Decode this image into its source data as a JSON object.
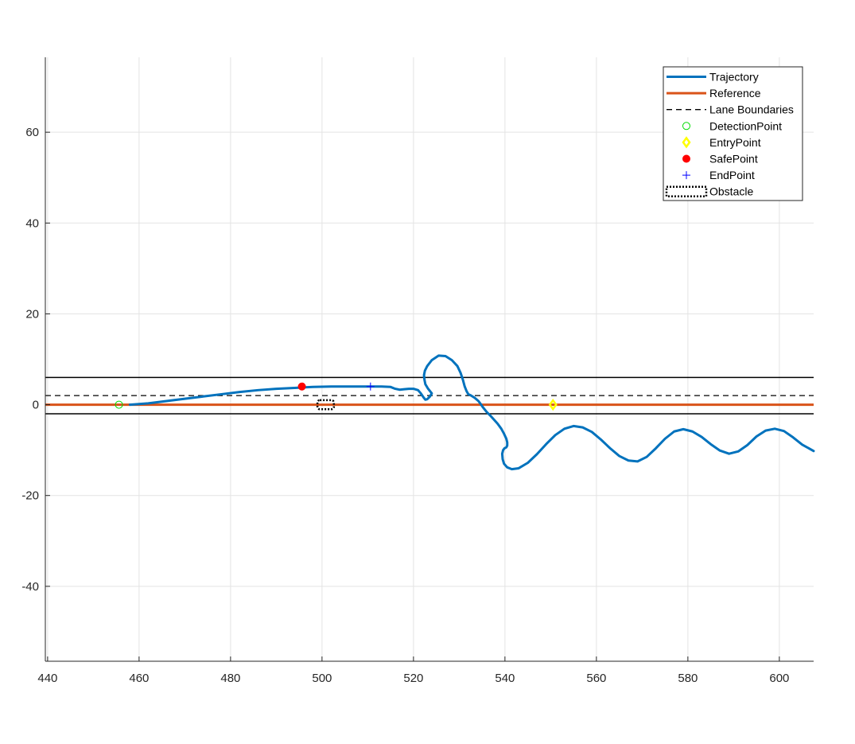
{
  "chart_data": {
    "type": "line",
    "title": "",
    "xlabel": "",
    "ylabel": "",
    "xlim": [
      439.5,
      607.5
    ],
    "ylim": [
      -56.5,
      76.5
    ],
    "xticks": [
      440,
      460,
      480,
      500,
      520,
      540,
      560,
      580,
      600
    ],
    "yticks": [
      -40,
      -20,
      0,
      20,
      40,
      60
    ],
    "grid": true,
    "legend_position": "top-right",
    "series": [
      {
        "name": "Trajectory",
        "kind": "line",
        "color": "#0072BD",
        "x": [
          458.0,
          462,
          466,
          470,
          474,
          478,
          482,
          486,
          490,
          494,
          498,
          502,
          506,
          510,
          513,
          515,
          516,
          517,
          518,
          519,
          520,
          521,
          521.6,
          522.2,
          522.6,
          523,
          523.6,
          524,
          523.6,
          523.2,
          522.6,
          522.4,
          522.3,
          522.5,
          523,
          524,
          525.5,
          527,
          528.4,
          529.6,
          530.3,
          530.8,
          531.2,
          531.6,
          532.0,
          532.6,
          533.4,
          534.2,
          534.8,
          535.2,
          535.6,
          536.0,
          536.8,
          537.6,
          538.4,
          539.2,
          539.8,
          540.3,
          540.5,
          540.5,
          540.3,
          539.9,
          539.6,
          539.4,
          539.5,
          539.8,
          540.5,
          541.5,
          543,
          545,
          547,
          549,
          551,
          553,
          555,
          557,
          559,
          561,
          563,
          565,
          567,
          569,
          571,
          573,
          575,
          577,
          579,
          581,
          583,
          585,
          587,
          589,
          591,
          593,
          595,
          597,
          599,
          601,
          603,
          605,
          607.5
        ],
        "y": [
          0.0,
          0.3,
          0.8,
          1.3,
          1.8,
          2.3,
          2.8,
          3.2,
          3.5,
          3.7,
          3.9,
          4.0,
          4.0,
          4.0,
          4.0,
          3.9,
          3.5,
          3.3,
          3.4,
          3.5,
          3.5,
          3.2,
          2.5,
          1.6,
          1.1,
          1.2,
          1.8,
          2.5,
          3.0,
          3.5,
          4.5,
          5.5,
          6.5,
          7.5,
          8.5,
          9.8,
          10.8,
          10.7,
          9.8,
          8.5,
          7.0,
          5.5,
          4.0,
          3.0,
          2.3,
          2.0,
          1.5,
          0.8,
          0.0,
          -0.6,
          -1.1,
          -1.6,
          -2.4,
          -3.3,
          -4.2,
          -5.3,
          -6.4,
          -7.5,
          -8.3,
          -9.0,
          -9.4,
          -9.6,
          -10.0,
          -10.8,
          -12.0,
          -13.0,
          -13.8,
          -14.2,
          -14.0,
          -12.8,
          -10.9,
          -8.7,
          -6.7,
          -5.3,
          -4.7,
          -5.0,
          -6.0,
          -7.7,
          -9.6,
          -11.3,
          -12.3,
          -12.5,
          -11.5,
          -9.6,
          -7.5,
          -5.9,
          -5.4,
          -5.9,
          -7.1,
          -8.7,
          -10.1,
          -10.8,
          -10.3,
          -8.9,
          -7.0,
          -5.7,
          -5.3,
          -5.8,
          -7.2,
          -8.8,
          -10.2
        ]
      },
      {
        "name": "Reference",
        "kind": "line",
        "color": "#D95319",
        "x": [
          439.5,
          607.5
        ],
        "y": [
          0,
          0
        ]
      },
      {
        "name": "Lane Boundaries",
        "kind": "dashed",
        "color": "#000000",
        "x": [
          439.5,
          607.5
        ],
        "y": [
          2,
          2
        ]
      },
      {
        "name": "DetectionPoint",
        "kind": "marker-circle-open",
        "color": "#00DD00",
        "x": [
          455.6
        ],
        "y": [
          0
        ]
      },
      {
        "name": "EntryPoint",
        "kind": "marker-diamond",
        "color": "#FFFF00",
        "x": [
          550.5
        ],
        "y": [
          0
        ]
      },
      {
        "name": "SafePoint",
        "kind": "marker-dot",
        "color": "#FF0000",
        "x": [
          495.6
        ],
        "y": [
          4
        ]
      },
      {
        "name": "EndPoint",
        "kind": "marker-plus",
        "color": "#0000FF",
        "x": [
          510.6
        ],
        "y": [
          4
        ]
      },
      {
        "name": "Obstacle",
        "kind": "dotted-rect",
        "color": "#000000",
        "x": [
          499,
          502.6
        ],
        "y": [
          -1,
          1
        ]
      }
    ],
    "lane_edges": {
      "color": "#000000",
      "y": [
        6,
        -2
      ]
    }
  }
}
